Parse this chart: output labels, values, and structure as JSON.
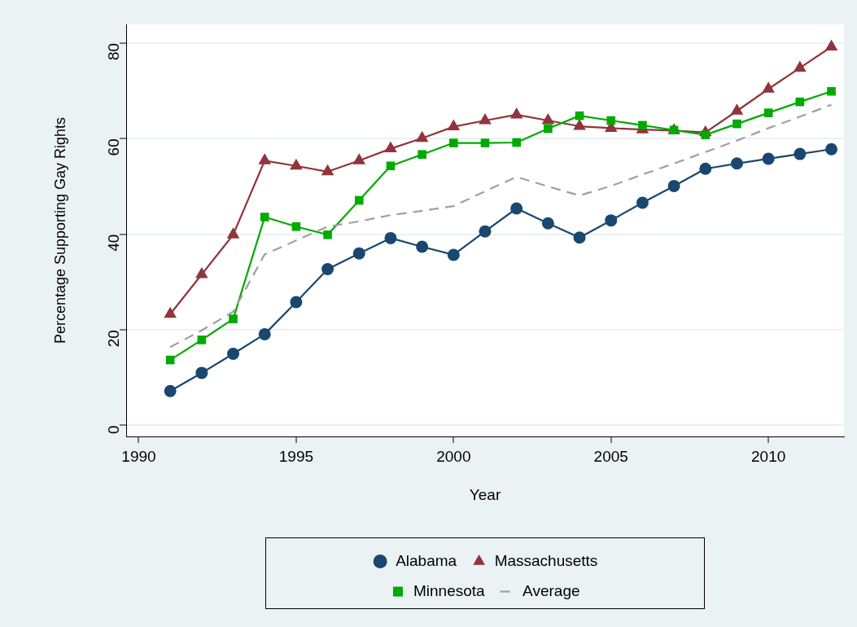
{
  "chart_data": {
    "type": "line",
    "xlabel": "Year",
    "ylabel": "Percentage Supporting Gay Rights",
    "x": [
      1991,
      1992,
      1993,
      1994,
      1995,
      1996,
      1997,
      1998,
      1999,
      2000,
      2001,
      2002,
      2003,
      2004,
      2005,
      2006,
      2007,
      2008,
      2009,
      2010,
      2011,
      2012
    ],
    "xlim": [
      1989.6,
      2012.4
    ],
    "xticks": [
      1990,
      1995,
      2000,
      2005,
      2010
    ],
    "ylim": [
      -2.3,
      83.9
    ],
    "yticks": [
      0,
      20,
      40,
      60,
      80
    ],
    "grid": "y",
    "legend": "bottom",
    "series": [
      {
        "name": "Alabama",
        "color": "#1a476f",
        "marker": "circle",
        "line_style": "solid",
        "values": [
          7.2,
          11.0,
          15.0,
          19.1,
          25.8,
          32.7,
          36.0,
          39.2,
          37.4,
          35.7,
          40.6,
          45.4,
          42.3,
          39.3,
          42.9,
          46.6,
          50.1,
          53.7,
          54.8,
          55.8,
          56.8,
          57.8
        ]
      },
      {
        "name": "Massachusetts",
        "color": "#90353b",
        "marker": "triangle",
        "line_style": "solid",
        "values": [
          23.3,
          31.6,
          39.9,
          55.4,
          54.3,
          53.1,
          55.4,
          57.9,
          60.1,
          62.5,
          63.8,
          65.0,
          63.8,
          62.6,
          62.2,
          61.9,
          61.7,
          61.3,
          65.8,
          70.4,
          74.8,
          79.2
        ]
      },
      {
        "name": "Minnesota",
        "color": "#00aa00",
        "marker": "square",
        "line_style": "solid",
        "values": [
          13.7,
          17.9,
          22.3,
          43.6,
          41.6,
          39.9,
          47.1,
          54.3,
          56.7,
          59.1,
          59.1,
          59.2,
          62.1,
          64.8,
          63.8,
          62.8,
          61.8,
          60.8,
          63.1,
          65.4,
          67.7,
          69.9
        ]
      },
      {
        "name": "Average",
        "color": "#a0a0a0",
        "marker": "none",
        "line_style": "dashed",
        "values": [
          16.4,
          19.9,
          23.8,
          35.8,
          38.7,
          41.6,
          42.7,
          44.0,
          44.9,
          45.9,
          49.0,
          52.0,
          50.0,
          48.1,
          50.1,
          52.5,
          54.8,
          57.2,
          59.6,
          62.2,
          64.6,
          67.1
        ]
      }
    ]
  }
}
